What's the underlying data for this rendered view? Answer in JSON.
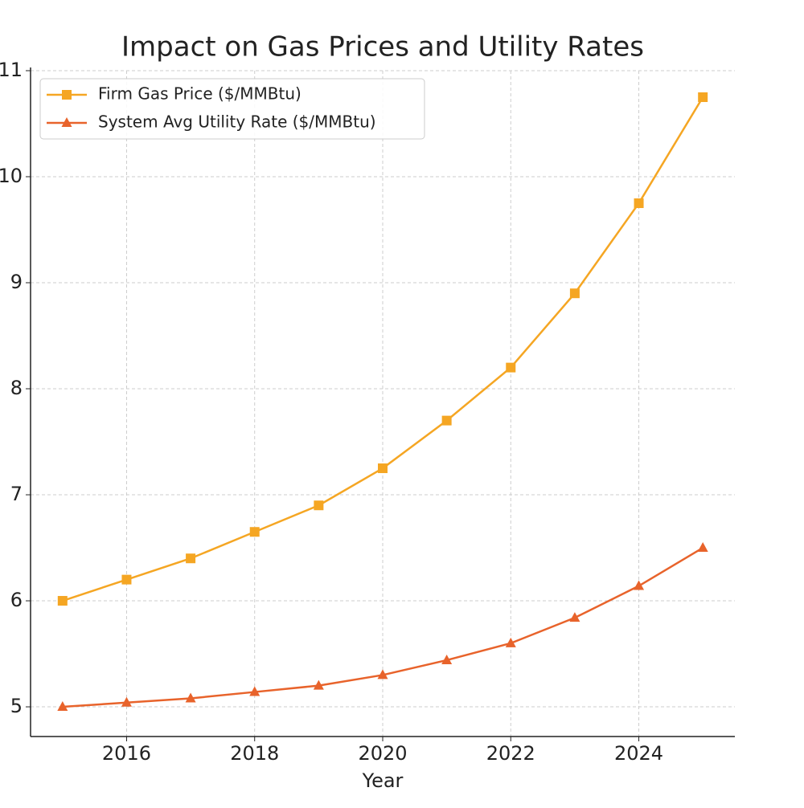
{
  "chart_data": {
    "type": "line",
    "title": "Impact on Gas Prices and Utility Rates",
    "xlabel": "Year",
    "x": [
      2015,
      2016,
      2017,
      2018,
      2019,
      2020,
      2021,
      2022,
      2023,
      2024,
      2025
    ],
    "series": [
      {
        "name": "Firm Gas Price ($/MMBtu)",
        "color": "#f5a623",
        "marker": "square",
        "values": [
          6.0,
          6.2,
          6.4,
          6.65,
          6.9,
          7.25,
          7.7,
          8.2,
          8.9,
          9.75,
          10.75
        ]
      },
      {
        "name": "System Avg Utility Rate ($/MMBtu)",
        "color": "#e8632b",
        "marker": "triangle",
        "values": [
          5.0,
          5.04,
          5.08,
          5.14,
          5.2,
          5.3,
          5.44,
          5.6,
          5.84,
          6.14,
          6.5
        ]
      }
    ],
    "xlim": [
      2014.5,
      2025.5
    ],
    "xticks": [
      2016,
      2018,
      2020,
      2022,
      2024
    ],
    "ylim": [
      4.72,
      11
    ],
    "yticks": [
      5,
      6,
      7,
      8,
      9,
      10,
      11
    ],
    "grid": true,
    "legend": "upper-left"
  }
}
